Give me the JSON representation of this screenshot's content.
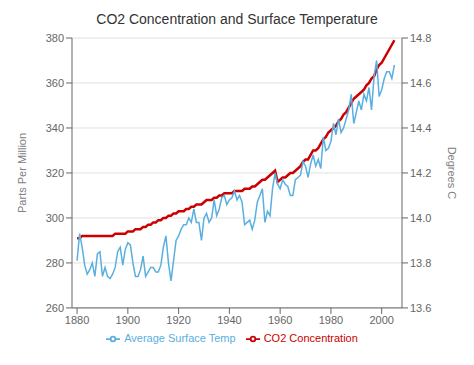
{
  "chart_data": {
    "type": "line",
    "title": "CO2 Concentration and Surface Temperature",
    "ylabel": "Parts Per Million",
    "y2label": "Degrees C",
    "x": [
      1880,
      1881,
      1882,
      1883,
      1884,
      1885,
      1886,
      1887,
      1888,
      1889,
      1890,
      1891,
      1892,
      1893,
      1894,
      1895,
      1896,
      1897,
      1898,
      1899,
      1900,
      1901,
      1902,
      1903,
      1904,
      1905,
      1906,
      1907,
      1908,
      1909,
      1910,
      1911,
      1912,
      1913,
      1914,
      1915,
      1916,
      1917,
      1918,
      1919,
      1920,
      1921,
      1922,
      1923,
      1924,
      1925,
      1926,
      1927,
      1928,
      1929,
      1930,
      1931,
      1932,
      1933,
      1934,
      1935,
      1936,
      1937,
      1938,
      1939,
      1940,
      1941,
      1942,
      1943,
      1944,
      1945,
      1946,
      1947,
      1948,
      1949,
      1950,
      1951,
      1952,
      1953,
      1954,
      1955,
      1956,
      1957,
      1958,
      1959,
      1960,
      1961,
      1962,
      1963,
      1964,
      1965,
      1966,
      1967,
      1968,
      1969,
      1970,
      1971,
      1972,
      1973,
      1974,
      1975,
      1976,
      1977,
      1978,
      1979,
      1980,
      1981,
      1982,
      1983,
      1984,
      1985,
      1986,
      1987,
      1988,
      1989,
      1990,
      1991,
      1992,
      1993,
      1994,
      1995,
      1996,
      1997,
      1998,
      1999,
      2000,
      2001,
      2002,
      2003,
      2004,
      2005
    ],
    "series": [
      {
        "name": "CO2 Concentration",
        "color": "#cc0000",
        "values": [
          291,
          291,
          292,
          292,
          292,
          292,
          292,
          292,
          292,
          292,
          292,
          292,
          292,
          292,
          292,
          293,
          293,
          293,
          293,
          293,
          294,
          294,
          294,
          295,
          295,
          295,
          296,
          296,
          297,
          297,
          298,
          298,
          299,
          299,
          300,
          300,
          301,
          301,
          302,
          302,
          303,
          303,
          303,
          304,
          304,
          305,
          305,
          306,
          306,
          306,
          307,
          308,
          308,
          308,
          309,
          309,
          310,
          310,
          311,
          311,
          311,
          311,
          312,
          312,
          312,
          312,
          313,
          313,
          313,
          314,
          314,
          315,
          316,
          317,
          317,
          318,
          319,
          320,
          321,
          316,
          317,
          318,
          318,
          319,
          320,
          320,
          321,
          322,
          323,
          325,
          326,
          326,
          328,
          330,
          330,
          331,
          333,
          335,
          336,
          338,
          339,
          340,
          341,
          343,
          344,
          346,
          347,
          349,
          351,
          353,
          354,
          355,
          356,
          357,
          359,
          360,
          362,
          363,
          366,
          368,
          369,
          371,
          373,
          375,
          377,
          379
        ]
      },
      {
        "name": "Average Surface Temp",
        "color": "#5aafe0",
        "axis": "y2",
        "values": [
          13.81,
          13.93,
          13.87,
          13.79,
          13.75,
          13.77,
          13.8,
          13.74,
          13.84,
          13.85,
          13.74,
          13.78,
          13.74,
          13.73,
          13.75,
          13.78,
          13.85,
          13.87,
          13.79,
          13.86,
          13.89,
          13.88,
          13.8,
          13.74,
          13.74,
          13.77,
          13.83,
          13.74,
          13.76,
          13.78,
          13.78,
          13.76,
          13.76,
          13.79,
          13.87,
          13.92,
          13.8,
          13.72,
          13.81,
          13.9,
          13.92,
          13.95,
          13.97,
          13.97,
          14.0,
          13.98,
          14.04,
          13.98,
          13.98,
          13.9,
          14.0,
          14.02,
          13.98,
          14.0,
          14.08,
          14.01,
          14.04,
          14.09,
          14.1,
          14.06,
          14.08,
          14.09,
          14.12,
          14.08,
          14.1,
          14.07,
          13.97,
          13.98,
          13.99,
          13.95,
          13.99,
          14.07,
          14.1,
          14.13,
          13.98,
          14.03,
          14.01,
          14.13,
          14.2,
          14.15,
          14.13,
          14.17,
          14.15,
          14.14,
          14.1,
          14.1,
          14.17,
          14.18,
          14.19,
          14.25,
          14.23,
          14.18,
          14.24,
          14.28,
          14.23,
          14.26,
          14.22,
          14.36,
          14.3,
          14.31,
          14.34,
          14.42,
          14.37,
          14.44,
          14.38,
          14.4,
          14.44,
          14.48,
          14.55,
          14.42,
          14.47,
          14.52,
          14.48,
          14.55,
          14.52,
          14.58,
          14.48,
          14.63,
          14.7,
          14.54,
          14.57,
          14.62,
          14.65,
          14.65,
          14.62,
          14.68
        ]
      }
    ],
    "xlim": [
      1878,
      2008
    ],
    "xticks": [
      1880,
      1900,
      1920,
      1940,
      1960,
      1980,
      2000
    ],
    "ylim": [
      260,
      380
    ],
    "yticks": [
      260,
      280,
      300,
      320,
      340,
      360,
      380
    ],
    "y2lim": [
      13.6,
      14.8
    ],
    "y2ticks": [
      13.6,
      13.8,
      {
        "value": 14,
        "label": "14.0"
      },
      14.2,
      14.4,
      14.6,
      14.8
    ],
    "grid": true,
    "legend": "bottom"
  }
}
